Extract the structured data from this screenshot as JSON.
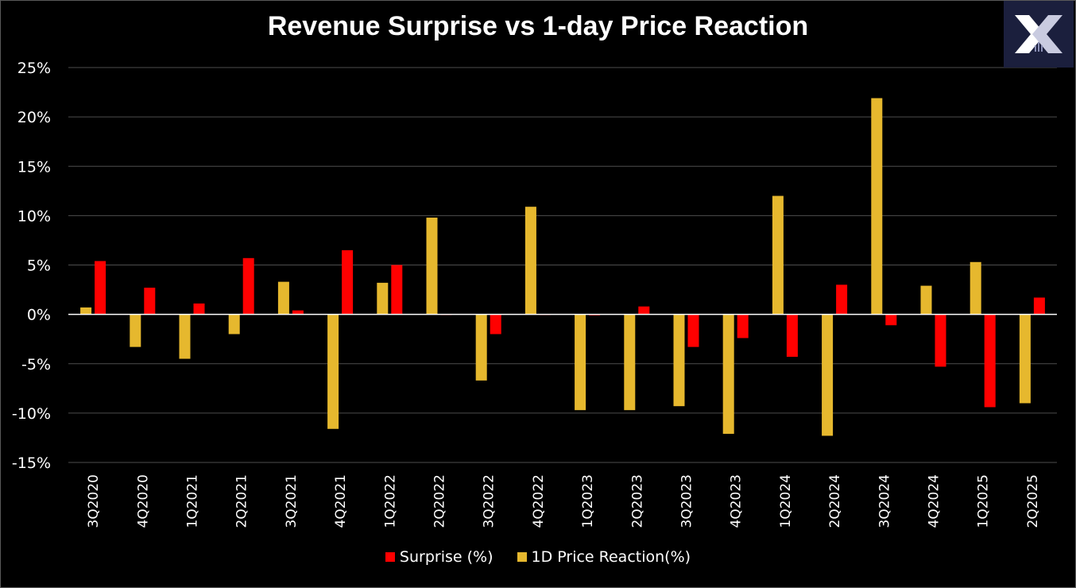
{
  "chart_data": {
    "type": "bar",
    "title": "Revenue Surprise vs 1-day Price Reaction",
    "xlabel": "",
    "ylabel": "",
    "ylim": [
      -15,
      25
    ],
    "yticks": [
      25,
      20,
      15,
      10,
      5,
      0,
      -5,
      -10,
      -15
    ],
    "ytick_labels": [
      "25%",
      "20%",
      "15%",
      "10%",
      "5%",
      "0%",
      "-5%",
      "-10%",
      "-15%"
    ],
    "grid": true,
    "legend_position": "bottom",
    "categories": [
      "3Q2020",
      "4Q2020",
      "1Q2021",
      "2Q2021",
      "3Q2021",
      "4Q2021",
      "1Q2022",
      "2Q2022",
      "3Q2022",
      "4Q2022",
      "1Q2023",
      "2Q2023",
      "3Q2023",
      "4Q2023",
      "1Q2024",
      "2Q2024",
      "3Q2024",
      "4Q2024",
      "1Q2025",
      "2Q2025"
    ],
    "series": [
      {
        "name": "Surprise (%)",
        "color": "#ff0000",
        "values": [
          5.4,
          2.7,
          1.1,
          5.7,
          0.4,
          6.5,
          5.0,
          0.0,
          -2.0,
          0.0,
          -0.1,
          0.8,
          -3.3,
          -2.4,
          -4.3,
          3.0,
          -1.1,
          -5.3,
          -9.4,
          1.7
        ]
      },
      {
        "name": "1D Price Reaction(%)",
        "color": "#e6b82e",
        "values": [
          0.7,
          -3.3,
          -4.5,
          -2.0,
          3.3,
          -11.6,
          3.2,
          9.8,
          -6.7,
          10.9,
          -9.7,
          -9.7,
          -9.3,
          -12.1,
          12.0,
          -12.3,
          21.9,
          2.9,
          5.3,
          -9.0
        ]
      }
    ]
  },
  "logo": {
    "icon": "mx-logo-icon",
    "bg_color": "#1b1f3d"
  }
}
